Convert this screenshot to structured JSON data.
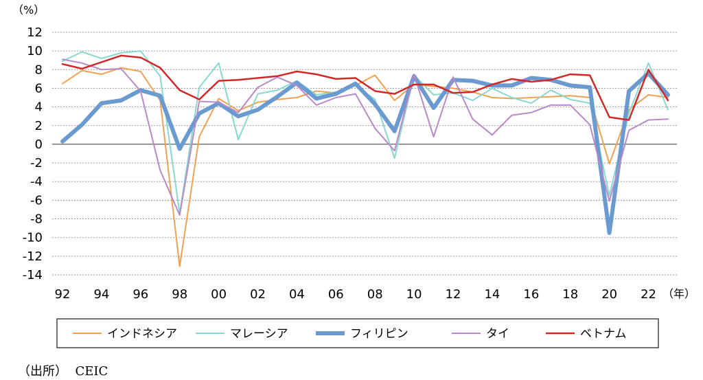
{
  "chart_data": {
    "type": "line",
    "y_unit_label": "（%）",
    "x_unit_label": "（年）",
    "ylim": [
      -14,
      12
    ],
    "yticks": [
      12,
      10,
      8,
      6,
      4,
      2,
      0,
      -2,
      -4,
      -6,
      -8,
      -10,
      -12,
      -14
    ],
    "xlim": [
      1992,
      2023
    ],
    "xticks": [
      {
        "year": 1992,
        "label": "92"
      },
      {
        "year": 1994,
        "label": "94"
      },
      {
        "year": 1996,
        "label": "96"
      },
      {
        "year": 1998,
        "label": "98"
      },
      {
        "year": 2000,
        "label": "00"
      },
      {
        "year": 2002,
        "label": "02"
      },
      {
        "year": 2004,
        "label": "04"
      },
      {
        "year": 2006,
        "label": "06"
      },
      {
        "year": 2008,
        "label": "08"
      },
      {
        "year": 2010,
        "label": "10"
      },
      {
        "year": 2012,
        "label": "12"
      },
      {
        "year": 2014,
        "label": "14"
      },
      {
        "year": 2016,
        "label": "16"
      },
      {
        "year": 2018,
        "label": "18"
      },
      {
        "year": 2020,
        "label": "20"
      },
      {
        "year": 2022,
        "label": "22"
      }
    ],
    "grid": "horizontal-dotted",
    "legend_position": "bottom",
    "x": [
      1992,
      1993,
      1994,
      1995,
      1996,
      1997,
      1998,
      1999,
      2000,
      2001,
      2002,
      2003,
      2004,
      2005,
      2006,
      2007,
      2008,
      2009,
      2010,
      2011,
      2012,
      2013,
      2014,
      2015,
      2016,
      2017,
      2018,
      2019,
      2020,
      2021,
      2022,
      2023
    ],
    "series": [
      {
        "name": "インドネシア",
        "color": "#f0a050",
        "width": 2,
        "values": [
          6.5,
          7.9,
          7.5,
          8.2,
          7.8,
          4.7,
          -13.1,
          0.8,
          4.9,
          3.6,
          4.5,
          4.8,
          5.0,
          5.7,
          5.5,
          6.3,
          7.4,
          4.7,
          6.4,
          6.2,
          6.0,
          5.6,
          5.0,
          4.9,
          5.0,
          5.1,
          5.2,
          5.0,
          -2.1,
          3.7,
          5.3,
          5.0
        ]
      },
      {
        "name": "マレーシア",
        "color": "#88d8d0",
        "width": 2,
        "values": [
          8.9,
          9.9,
          9.2,
          9.8,
          10.0,
          7.3,
          -7.4,
          6.1,
          8.7,
          0.5,
          5.4,
          5.8,
          6.8,
          5.3,
          5.6,
          6.3,
          4.8,
          -1.5,
          7.4,
          5.3,
          5.5,
          4.7,
          6.0,
          5.0,
          4.4,
          5.8,
          4.8,
          4.4,
          -5.5,
          3.3,
          8.7,
          3.7
        ]
      },
      {
        "name": "フィリピン",
        "color": "#6a9ad0",
        "width": 6,
        "values": [
          0.3,
          2.1,
          4.4,
          4.7,
          5.8,
          5.2,
          -0.5,
          3.3,
          4.4,
          3.0,
          3.7,
          5.1,
          6.6,
          4.9,
          5.4,
          6.5,
          4.3,
          1.4,
          7.3,
          3.9,
          6.9,
          6.8,
          6.3,
          6.3,
          7.1,
          6.9,
          6.3,
          6.1,
          -9.5,
          5.7,
          7.6,
          5.3
        ]
      },
      {
        "name": "タイ",
        "color": "#b888c8",
        "width": 2,
        "values": [
          9.1,
          8.7,
          8.0,
          8.1,
          5.7,
          -2.8,
          -7.6,
          4.6,
          4.5,
          3.4,
          6.1,
          7.2,
          6.3,
          4.2,
          5.0,
          5.4,
          1.7,
          -0.7,
          7.5,
          0.8,
          7.2,
          2.7,
          1.0,
          3.1,
          3.4,
          4.2,
          4.2,
          2.1,
          -6.1,
          1.5,
          2.6,
          2.7
        ]
      },
      {
        "name": "ベトナム",
        "color": "#d02828",
        "width": 2.5,
        "values": [
          8.6,
          8.1,
          8.8,
          9.5,
          9.3,
          8.2,
          5.8,
          4.8,
          6.8,
          6.9,
          7.1,
          7.3,
          7.8,
          7.5,
          7.0,
          7.1,
          5.7,
          5.4,
          6.4,
          6.4,
          5.5,
          5.6,
          6.4,
          7.0,
          6.7,
          6.9,
          7.5,
          7.4,
          2.9,
          2.6,
          8.0,
          4.7
        ]
      }
    ]
  },
  "source_text": "（出所）  CEIC"
}
